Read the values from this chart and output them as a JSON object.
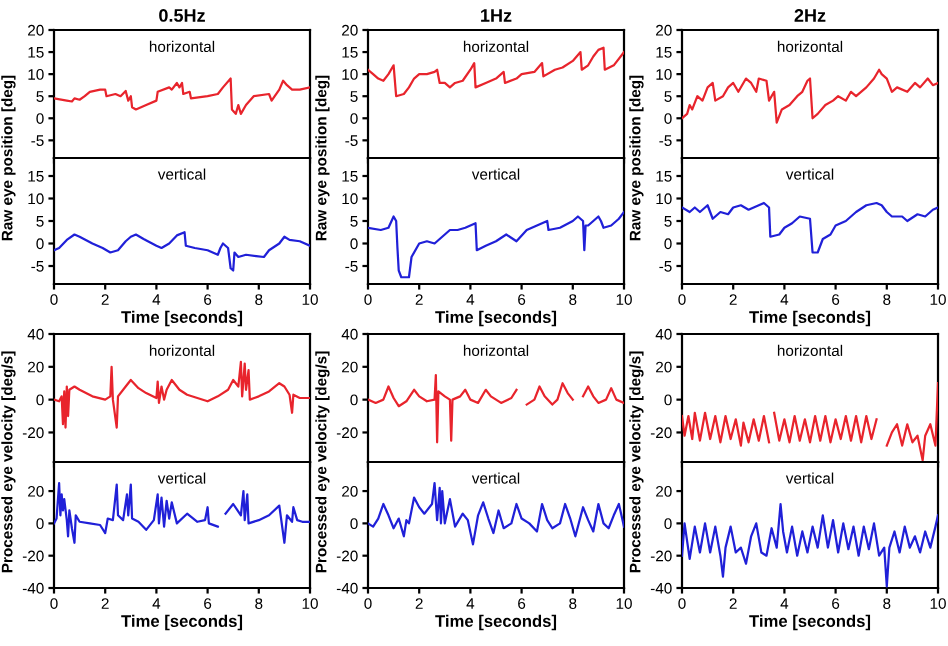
{
  "chart_data": [
    {
      "type": "line",
      "title": "0.5Hz",
      "ylabel": "Raw eye position [deg]",
      "annotations": [
        "horizontal"
      ],
      "xlim": [
        0,
        10
      ],
      "xticks": [
        0,
        2,
        4,
        6,
        8,
        10
      ],
      "ylim": [
        -9,
        20
      ],
      "yticks": [
        -5,
        0,
        5,
        10,
        15,
        20
      ],
      "tick_labels": "y",
      "series": [
        {
          "color": "#e8242c",
          "x": [
            0,
            0.5,
            0.7,
            0.8,
            1.0,
            1.2,
            1.4,
            1.8,
            2.0,
            2.05,
            2.4,
            2.6,
            2.8,
            2.9,
            3.0,
            3.05,
            3.2,
            3.6,
            4.0,
            4.05,
            4.5,
            4.6,
            4.8,
            4.9,
            5.0,
            5.05,
            5.3,
            5.35,
            6.0,
            6.4,
            6.6,
            6.9,
            6.95,
            7.1,
            7.2,
            7.3,
            7.5,
            7.8,
            8.4,
            8.5,
            8.8,
            8.95,
            9.1,
            9.3,
            9.6,
            10
          ],
          "values": [
            4.5,
            4,
            3.8,
            4.5,
            4.2,
            5,
            6,
            6.5,
            6.5,
            5,
            5.5,
            5,
            6.2,
            4,
            5,
            2.5,
            2,
            3,
            4,
            6,
            7,
            6.5,
            8,
            7,
            8,
            5.5,
            6,
            4.5,
            5,
            5.5,
            7,
            9,
            2,
            1,
            3,
            1,
            3,
            5,
            5.5,
            4,
            6.5,
            8.5,
            7.5,
            6.5,
            6.5,
            7
          ]
        }
      ]
    },
    {
      "type": "line",
      "title": "1Hz",
      "ylabel": "Raw eye position [deg]",
      "annotations": [
        "horizontal"
      ],
      "xlim": [
        0,
        10
      ],
      "xticks": [
        0,
        2,
        4,
        6,
        8,
        10
      ],
      "ylim": [
        -9,
        20
      ],
      "yticks": [
        -5,
        0,
        5,
        10,
        15,
        20
      ],
      "tick_labels": "y",
      "series": [
        {
          "color": "#e8242c",
          "x": [
            0,
            0.2,
            0.4,
            0.6,
            0.8,
            1.0,
            1.1,
            1.4,
            1.6,
            1.8,
            2.0,
            2.3,
            2.6,
            2.7,
            2.8,
            3.0,
            3.2,
            3.4,
            3.7,
            4.0,
            4.15,
            4.2,
            4.6,
            5.0,
            5.3,
            5.35,
            5.8,
            6.0,
            6.5,
            6.8,
            6.85,
            7.3,
            7.6,
            8.0,
            8.3,
            8.35,
            8.6,
            8.8,
            9.0,
            9.2,
            9.25,
            9.6,
            10
          ],
          "values": [
            11,
            10,
            9,
            8.5,
            10,
            12,
            5,
            5.5,
            7,
            9,
            10,
            10,
            10.5,
            11,
            8,
            8,
            7,
            8,
            8.5,
            11,
            12.5,
            7,
            8,
            9,
            10.5,
            8,
            9,
            10,
            10.5,
            12.5,
            9.5,
            11,
            11.5,
            13,
            15,
            11,
            12,
            14,
            15.5,
            16,
            11,
            12,
            15
          ]
        }
      ]
    },
    {
      "type": "line",
      "title": "2Hz",
      "ylabel": "Raw eye position [deg]",
      "annotations": [
        "horizontal"
      ],
      "xlim": [
        0,
        10
      ],
      "xticks": [
        0,
        2,
        4,
        6,
        8,
        10
      ],
      "ylim": [
        -9,
        20
      ],
      "yticks": [
        -5,
        0,
        5,
        10,
        15,
        20
      ],
      "tick_labels": "y",
      "series": [
        {
          "color": "#e8242c",
          "x": [
            0,
            0.2,
            0.3,
            0.4,
            0.6,
            0.8,
            1.0,
            1.2,
            1.3,
            1.6,
            1.8,
            2.0,
            2.2,
            2.5,
            2.7,
            2.9,
            3.0,
            3.3,
            3.4,
            3.6,
            3.7,
            3.9,
            4.2,
            4.5,
            4.7,
            4.9,
            5.0,
            5.1,
            5.3,
            5.6,
            5.9,
            6.1,
            6.4,
            6.6,
            6.8,
            7.2,
            7.5,
            7.7,
            7.8,
            8.0,
            8.2,
            8.4,
            8.8,
            9.1,
            9.3,
            9.6,
            9.8,
            10
          ],
          "values": [
            0,
            1,
            3,
            2,
            5,
            4,
            7,
            8,
            4,
            5,
            7,
            8,
            6,
            9,
            8,
            6,
            9,
            8.5,
            4,
            6,
            -1,
            2,
            3,
            5,
            6,
            8.5,
            9,
            0,
            1,
            3,
            4,
            5,
            4,
            6,
            5,
            7,
            9,
            11,
            10,
            9,
            6,
            7,
            6,
            8,
            7,
            9,
            7.5,
            8
          ]
        }
      ]
    },
    {
      "type": "line",
      "xlabel": "Time [seconds]",
      "annotations": [
        "vertical"
      ],
      "xlim": [
        0,
        10
      ],
      "xticks": [
        0,
        2,
        4,
        6,
        8,
        10
      ],
      "ylim": [
        -9,
        19
      ],
      "yticks": [
        -5,
        0,
        5,
        10,
        15
      ],
      "series": [
        {
          "color": "#2020d8",
          "x": [
            0,
            0.2,
            0.5,
            0.8,
            1.0,
            1.5,
            1.9,
            2.2,
            2.5,
            2.8,
            3.0,
            3.2,
            3.5,
            4.0,
            4.2,
            4.5,
            4.8,
            5.1,
            5.15,
            5.5,
            6.0,
            6.4,
            6.5,
            6.6,
            6.8,
            6.9,
            7.0,
            7.05,
            7.2,
            7.5,
            7.9,
            8.2,
            8.4,
            8.8,
            9.0,
            9.2,
            9.6,
            10
          ],
          "values": [
            -1.5,
            -1,
            0.8,
            2,
            1.5,
            0,
            -1,
            -2,
            -1.5,
            0.5,
            1.5,
            2,
            1,
            -0.5,
            -1,
            0,
            1.8,
            2.5,
            -0.5,
            -1,
            -1.5,
            -2.5,
            -1,
            0,
            -1,
            -5.5,
            -6,
            -2,
            -3,
            -2.5,
            -2.8,
            -3,
            -1.5,
            0,
            1.5,
            0.8,
            0.5,
            -0.5
          ]
        }
      ]
    },
    {
      "type": "line",
      "xlabel": "Time [seconds]",
      "annotations": [
        "vertical"
      ],
      "xlim": [
        0,
        10
      ],
      "xticks": [
        0,
        2,
        4,
        6,
        8,
        10
      ],
      "ylim": [
        -9,
        19
      ],
      "yticks": [
        -5,
        0,
        5,
        10,
        15
      ],
      "series": [
        {
          "color": "#2020d8",
          "x": [
            0,
            0.5,
            0.8,
            1.0,
            1.1,
            1.15,
            1.2,
            1.3,
            1.6,
            1.7,
            2.0,
            2.3,
            2.6,
            2.9,
            3.2,
            3.5,
            3.8,
            4.2,
            4.25,
            4.6,
            5.0,
            5.4,
            5.8,
            6.2,
            6.6,
            7.0,
            7.05,
            7.5,
            8.0,
            8.2,
            8.4,
            8.45,
            8.5,
            8.6,
            8.8,
            9.0,
            9.1,
            9.2,
            9.5,
            9.8,
            10
          ],
          "values": [
            3.5,
            3,
            3.5,
            6,
            5,
            -1,
            -6,
            -7.5,
            -7.5,
            -3,
            0,
            0.5,
            0,
            1.5,
            3,
            3,
            3.5,
            4.5,
            -1.5,
            -0.5,
            0.5,
            2,
            0.5,
            3,
            4,
            5,
            3,
            3.5,
            5,
            6,
            5,
            -1.5,
            4,
            4,
            5,
            6,
            5,
            3.5,
            4,
            5.5,
            7
          ]
        }
      ]
    },
    {
      "type": "line",
      "xlabel": "Time [seconds]",
      "annotations": [
        "vertical"
      ],
      "xlim": [
        0,
        10
      ],
      "xticks": [
        0,
        2,
        4,
        6,
        8,
        10
      ],
      "ylim": [
        -9,
        19
      ],
      "yticks": [
        -5,
        0,
        5,
        10,
        15
      ],
      "series": [
        {
          "color": "#2020d8",
          "x": [
            0,
            0.3,
            0.5,
            0.7,
            1.0,
            1.2,
            1.5,
            1.8,
            2.0,
            2.3,
            2.6,
            3.0,
            3.2,
            3.4,
            3.45,
            3.8,
            4.0,
            4.3,
            4.6,
            5.0,
            5.1,
            5.3,
            5.5,
            5.8,
            6.0,
            6.4,
            6.8,
            7.2,
            7.6,
            7.8,
            8.0,
            8.2,
            8.6,
            8.8,
            9.2,
            9.5,
            9.8,
            10
          ],
          "values": [
            8,
            7,
            8,
            7,
            8.5,
            5.5,
            7,
            6.5,
            8,
            8.5,
            7.5,
            8.5,
            9,
            8,
            1.5,
            2,
            3.5,
            4.5,
            6,
            5.5,
            -2,
            -2,
            1,
            2,
            4,
            5,
            7,
            8.5,
            9,
            8.5,
            7,
            6,
            6,
            5,
            6.5,
            6,
            7.5,
            8
          ]
        }
      ]
    },
    {
      "type": "line",
      "ylabel": "Processed eye velocity [deg/s]",
      "annotations": [
        "horizontal"
      ],
      "xlim": [
        0,
        10
      ],
      "xticks": [
        0,
        2,
        4,
        6,
        8,
        10
      ],
      "ylim": [
        -38,
        40
      ],
      "yticks": [
        -20,
        0,
        20,
        40
      ],
      "tick_labels": "y",
      "series": [
        {
          "color": "#e8242c",
          "x": [
            0,
            0.2,
            0.3,
            0.35,
            0.4,
            0.45,
            0.5,
            0.55,
            0.6,
            0.8,
            1.0,
            1.5,
            2.0,
            2.2,
            2.25,
            2.3,
            2.45,
            2.5,
            2.8,
            3.0,
            3.3,
            3.6,
            4.0,
            4.05,
            4.1,
            4.2,
            4.3,
            4.4,
            4.6,
            4.9,
            5.2,
            5.6,
            6.0,
            6.4,
            6.8,
            7.0,
            7.2,
            7.3,
            7.35,
            7.45,
            7.5,
            7.6,
            7.65,
            8.0,
            8.4,
            8.8,
            9.0,
            9.2,
            9.3,
            9.35,
            9.6,
            10
          ],
          "values": [
            0,
            -1,
            2,
            -15,
            5,
            -17,
            8,
            -10,
            6,
            8,
            6,
            2,
            0,
            2,
            20,
            0,
            -17,
            2,
            8,
            12,
            7,
            4,
            1,
            11,
            -2,
            8,
            0,
            6,
            12,
            6,
            3,
            1,
            -1,
            2,
            6,
            12,
            8,
            23,
            2,
            22,
            6,
            18,
            0,
            2,
            5,
            10,
            8,
            3,
            -8,
            3,
            1,
            1
          ]
        }
      ]
    },
    {
      "type": "line",
      "ylabel": "Processed eye velocity [deg/s]",
      "annotations": [
        "horizontal"
      ],
      "xlim": [
        0,
        10
      ],
      "xticks": [
        0,
        2,
        4,
        6,
        8,
        10
      ],
      "ylim": [
        -38,
        40
      ],
      "yticks": [
        -20,
        0,
        20,
        40
      ],
      "tick_labels": "y",
      "series": [
        {
          "color": "#e8242c",
          "x": [
            0,
            0.3,
            0.6,
            0.8,
            1.0,
            1.2,
            1.5,
            1.8,
            2.0,
            2.3,
            2.6,
            2.65,
            2.7,
            2.75,
            3.0,
            3.2,
            3.25,
            3.3,
            3.6,
            3.8,
            4.0,
            4.3,
            4.6,
            4.8,
            5.2,
            5.6,
            5.8,
            6.0,
            6.2,
            6.5,
            6.7,
            6.9,
            7.2,
            7.4,
            7.6,
            7.8,
            8.0,
            8.2,
            8.4,
            8.6,
            8.8,
            9.0,
            9.3,
            9.5,
            9.7,
            10
          ],
          "values": [
            0,
            -2,
            0,
            8,
            1,
            -4,
            -1,
            6,
            2,
            -1,
            0,
            15,
            -26,
            5,
            2,
            0,
            -25,
            0,
            2,
            6,
            0,
            -2,
            6,
            2,
            -2,
            1,
            6,
            null,
            -3,
            0,
            8,
            2,
            -3,
            0,
            10,
            4,
            0,
            null,
            2,
            8,
            2,
            -2,
            0,
            7,
            0,
            -2
          ]
        }
      ]
    },
    {
      "type": "line",
      "ylabel": "Processed eye velocity [deg/s]",
      "annotations": [
        "horizontal"
      ],
      "xlim": [
        0,
        10
      ],
      "xticks": [
        0,
        2,
        4,
        6,
        8,
        10
      ],
      "ylim": [
        -38,
        40
      ],
      "yticks": [
        -20,
        0,
        20,
        40
      ],
      "tick_labels": "y",
      "series": [
        {
          "color": "#e8242c",
          "x": [
            0,
            0.1,
            0.25,
            0.4,
            0.5,
            0.7,
            0.9,
            1.1,
            1.3,
            1.5,
            1.7,
            1.9,
            2.1,
            2.3,
            2.4,
            2.6,
            2.8,
            3.0,
            3.2,
            3.4,
            3.5,
            3.6,
            3.8,
            4.0,
            4.2,
            4.4,
            4.6,
            4.8,
            5.0,
            5.2,
            5.4,
            5.6,
            5.8,
            6.0,
            6.2,
            6.4,
            6.6,
            6.8,
            7.0,
            7.2,
            7.4,
            7.6,
            7.8,
            8.0,
            8.2,
            8.4,
            8.6,
            8.8,
            9.0,
            9.2,
            9.4,
            9.5,
            9.7,
            9.9,
            10
          ],
          "values": [
            -10,
            -22,
            -10,
            -24,
            -8,
            -25,
            -8,
            -24,
            -10,
            -26,
            -10,
            -24,
            -12,
            -28,
            -14,
            -26,
            -12,
            -25,
            -10,
            -26,
            null,
            -8,
            -25,
            -12,
            -26,
            -10,
            -25,
            -12,
            -26,
            -10,
            -25,
            -10,
            -26,
            -12,
            -24,
            -10,
            -25,
            -10,
            -26,
            -10,
            -24,
            -12,
            null,
            -28,
            -20,
            -15,
            -28,
            -15,
            -26,
            -22,
            -37,
            -22,
            -15,
            -28,
            10
          ]
        }
      ]
    },
    {
      "type": "line",
      "xlabel": "Time [seconds]",
      "annotations": [
        "vertical"
      ],
      "xlim": [
        0,
        10
      ],
      "xticks": [
        0,
        2,
        4,
        6,
        8,
        10
      ],
      "ylim": [
        -40,
        38
      ],
      "yticks": [
        -40,
        -20,
        0,
        20
      ],
      "series": [
        {
          "color": "#2020d8",
          "x": [
            0,
            0.1,
            0.2,
            0.25,
            0.3,
            0.35,
            0.4,
            0.5,
            0.55,
            0.6,
            0.7,
            0.8,
            0.85,
            1.0,
            1.4,
            1.8,
            2.0,
            2.1,
            2.3,
            2.45,
            2.5,
            2.7,
            2.85,
            2.9,
            3.0,
            3.05,
            3.3,
            3.6,
            3.9,
            4.05,
            4.1,
            4.2,
            4.3,
            4.4,
            4.5,
            4.6,
            4.8,
            5.2,
            5.6,
            5.9,
            6.0,
            6.05,
            6.4,
            6.6,
            6.7,
            7.0,
            7.3,
            7.4,
            7.45,
            7.55,
            7.6,
            8.0,
            8.4,
            8.8,
            9.0,
            9.1,
            9.3,
            9.35,
            9.5,
            9.7,
            10
          ],
          "values": [
            0,
            3,
            25,
            5,
            18,
            8,
            15,
            2,
            -8,
            8,
            -3,
            -12,
            5,
            1,
            0,
            -1,
            -6,
            3,
            2,
            24,
            5,
            2,
            18,
            5,
            24,
            3,
            1,
            -4,
            2,
            18,
            0,
            16,
            -2,
            14,
            3,
            13,
            0,
            6,
            1,
            2,
            10,
            0,
            -2,
            null,
            6,
            12,
            5,
            20,
            2,
            18,
            0,
            2,
            5,
            11,
            -12,
            5,
            1,
            10,
            2,
            1,
            1
          ]
        }
      ]
    },
    {
      "type": "line",
      "xlabel": "Time [seconds]",
      "annotations": [
        "vertical"
      ],
      "xlim": [
        0,
        10
      ],
      "xticks": [
        0,
        2,
        4,
        6,
        8,
        10
      ],
      "ylim": [
        -40,
        38
      ],
      "yticks": [
        -40,
        -20,
        0,
        20
      ],
      "series": [
        {
          "color": "#2020d8",
          "x": [
            0,
            0.2,
            0.4,
            0.6,
            0.8,
            1.0,
            1.2,
            1.4,
            1.5,
            1.6,
            1.8,
            2.0,
            2.2,
            2.5,
            2.6,
            2.7,
            2.8,
            2.85,
            2.9,
            3.0,
            3.2,
            3.4,
            3.7,
            3.9,
            4.1,
            4.3,
            4.5,
            4.7,
            4.9,
            5.1,
            5.3,
            5.6,
            5.8,
            6.0,
            6.3,
            6.6,
            6.8,
            7.0,
            7.2,
            7.5,
            7.7,
            7.9,
            8.1,
            8.4,
            8.6,
            8.8,
            9.0,
            9.2,
            9.4,
            9.6,
            9.8,
            10
          ],
          "values": [
            0,
            -2,
            3,
            12,
            5,
            -3,
            3,
            -8,
            2,
            0,
            16,
            10,
            6,
            12,
            25,
            2,
            22,
            0,
            20,
            0,
            15,
            -2,
            6,
            2,
            -13,
            5,
            13,
            3,
            -6,
            8,
            -3,
            0,
            12,
            3,
            0,
            -5,
            12,
            2,
            -3,
            0,
            12,
            3,
            -8,
            10,
            2,
            -5,
            12,
            0,
            -3,
            5,
            12,
            -2
          ]
        }
      ]
    },
    {
      "type": "line",
      "xlabel": "Time [seconds]",
      "annotations": [
        "vertical"
      ],
      "xlim": [
        0,
        10
      ],
      "xticks": [
        0,
        2,
        4,
        6,
        8,
        10
      ],
      "ylim": [
        -40,
        38
      ],
      "yticks": [
        -40,
        -20,
        0,
        20
      ],
      "series": [
        {
          "color": "#2020d8",
          "x": [
            0,
            0.1,
            0.3,
            0.5,
            0.7,
            0.9,
            1.1,
            1.3,
            1.5,
            1.6,
            1.7,
            1.9,
            2.1,
            2.3,
            2.5,
            2.7,
            2.9,
            3.1,
            3.3,
            3.5,
            3.7,
            3.85,
            3.95,
            4.1,
            4.3,
            4.5,
            4.7,
            4.9,
            5.1,
            5.3,
            5.5,
            5.7,
            5.9,
            6.1,
            6.3,
            6.5,
            6.7,
            6.9,
            7.1,
            7.3,
            7.5,
            7.7,
            7.9,
            8.0,
            8.1,
            8.3,
            8.5,
            8.7,
            8.9,
            9.1,
            9.3,
            9.5,
            9.7,
            9.9,
            10
          ],
          "values": [
            -20,
            0,
            -22,
            -2,
            -18,
            0,
            -18,
            -2,
            -20,
            -33,
            -15,
            -2,
            -18,
            -15,
            -25,
            -8,
            0,
            -18,
            -20,
            -3,
            -15,
            12,
            -5,
            -18,
            -2,
            -20,
            -5,
            -18,
            -2,
            -15,
            5,
            -15,
            2,
            -18,
            0,
            -16,
            -2,
            -20,
            -2,
            -16,
            0,
            -20,
            -15,
            -39,
            -15,
            -5,
            -18,
            -2,
            -15,
            -8,
            -18,
            -5,
            -15,
            -2,
            5
          ]
        }
      ]
    }
  ]
}
